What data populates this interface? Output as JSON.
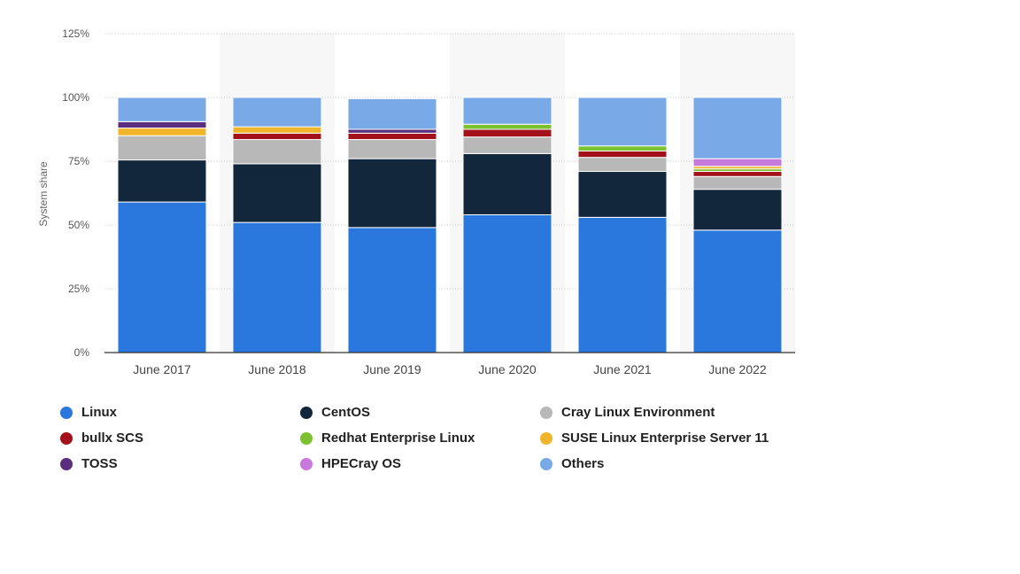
{
  "chart_data": {
    "type": "bar",
    "stacked": true,
    "categories": [
      "June 2017",
      "June 2018",
      "June 2019",
      "June 2020",
      "June 2021",
      "June 2022"
    ],
    "ylabel": "System share",
    "xlabel": "",
    "ylim": [
      0,
      125
    ],
    "yticks": [
      0,
      25,
      50,
      75,
      100,
      125
    ],
    "ytick_labels": [
      "0%",
      "25%",
      "50%",
      "75%",
      "100%",
      "125%"
    ],
    "grid": true,
    "legend_position": "bottom",
    "series": [
      {
        "name": "Linux",
        "color": "#2a77de",
        "values": [
          59,
          51,
          49,
          54,
          53,
          48
        ]
      },
      {
        "name": "CentOS",
        "color": "#12263c",
        "values": [
          16.5,
          23,
          27,
          24,
          18,
          16
        ]
      },
      {
        "name": "Cray Linux Environment",
        "color": "#b8b8b8",
        "values": [
          9.5,
          9.5,
          7.5,
          6.5,
          5.5,
          5
        ]
      },
      {
        "name": "bullx SCS",
        "color": "#a3111a",
        "values": [
          0,
          2.5,
          2.5,
          3,
          2.5,
          2
        ]
      },
      {
        "name": "Redhat Enterprise Linux",
        "color": "#7cc230",
        "values": [
          0,
          0,
          0,
          2,
          2,
          1
        ]
      },
      {
        "name": "SUSE Linux Enterprise Server 11",
        "color": "#f0b52b",
        "values": [
          3,
          2.5,
          0,
          0,
          0,
          1
        ]
      },
      {
        "name": "TOSS",
        "color": "#5b2d7e",
        "values": [
          2.5,
          0,
          1.5,
          0,
          0,
          0
        ]
      },
      {
        "name": "HPECray OS",
        "color": "#c879dc",
        "values": [
          0,
          0,
          0,
          0,
          0,
          3
        ]
      },
      {
        "name": "Others",
        "color": "#79a9e6",
        "values": [
          9.5,
          11.5,
          12,
          10.5,
          19,
          24
        ]
      }
    ]
  }
}
